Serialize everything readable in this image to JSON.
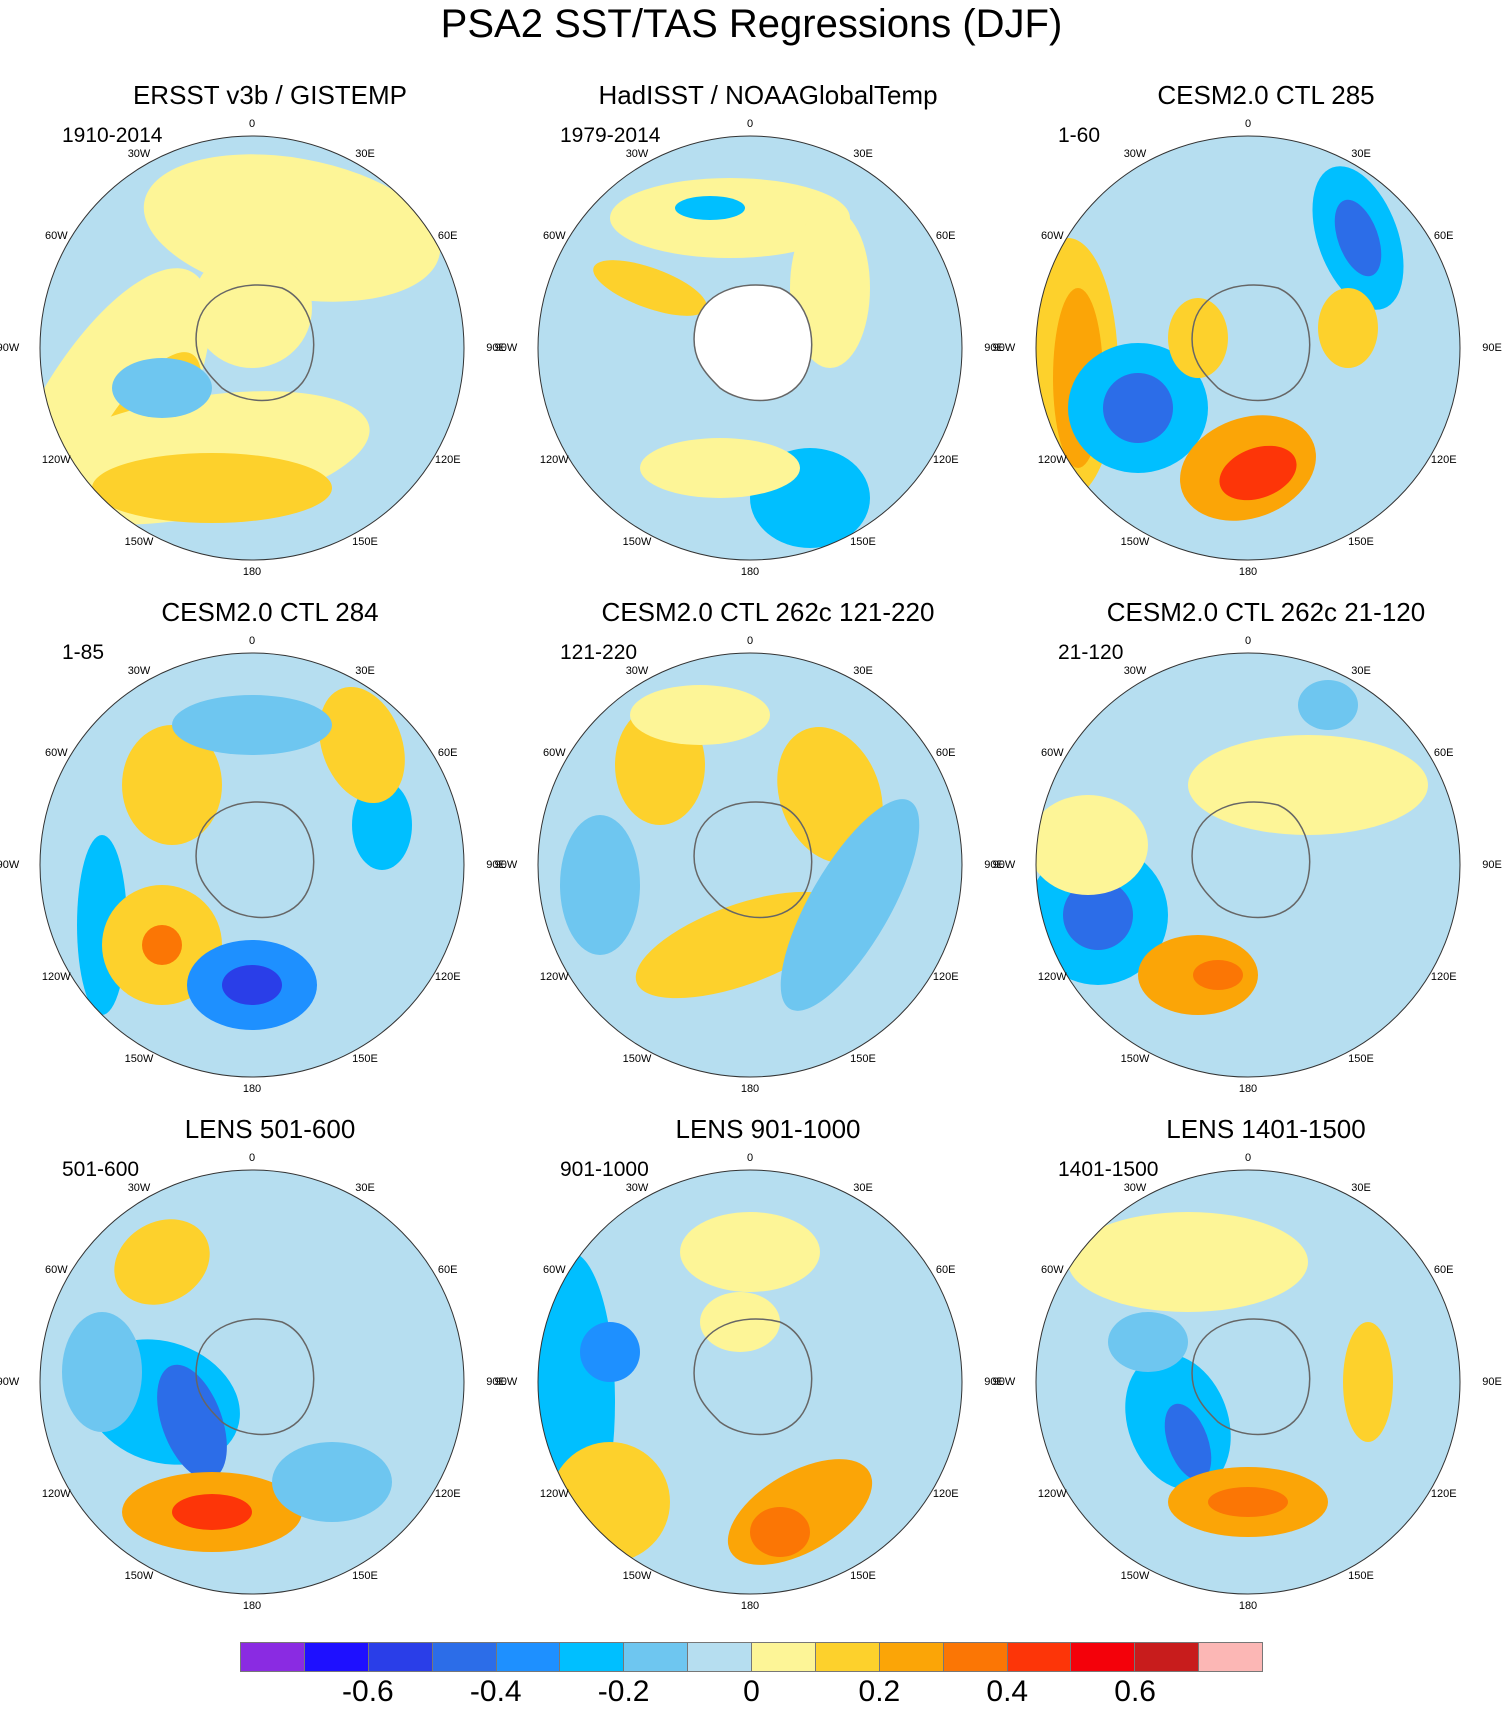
{
  "title": "PSA2 SST/TAS Regressions (DJF)",
  "longitude_labels": [
    "0",
    "30E",
    "60E",
    "90E",
    "120E",
    "150E",
    "180",
    "150W",
    "120W",
    "90W",
    "60W",
    "30W"
  ],
  "panels": [
    {
      "title": "ERSST v3b / GISTEMP",
      "period": "1910-2014"
    },
    {
      "title": "HadISST / NOAAGlobalTemp",
      "period": "1979-2014"
    },
    {
      "title": "CESM2.0 CTL 285",
      "period": "1-60"
    },
    {
      "title": "CESM2.0 CTL 284",
      "period": "1-85"
    },
    {
      "title": "CESM2.0 CTL 262c 121-220",
      "period": "121-220"
    },
    {
      "title": "CESM2.0 CTL 262c 21-120",
      "period": "21-120"
    },
    {
      "title": "LENS 501-600",
      "period": "501-600"
    },
    {
      "title": "LENS 901-1000",
      "period": "901-1000"
    },
    {
      "title": "LENS 1401-1500",
      "period": "1401-1500"
    }
  ],
  "colorbar": {
    "colors": [
      "#8a2be2",
      "#1e10ff",
      "#2a3ee8",
      "#2c6de8",
      "#1e90ff",
      "#00bfff",
      "#6ec6f0",
      "#b6def0",
      "#fdf597",
      "#fdd12c",
      "#fba507",
      "#fb7605",
      "#fd3508",
      "#f4010a",
      "#c81c1c",
      "#fcb7b5"
    ],
    "labels": [
      "-0.6",
      "-0.4",
      "-0.2",
      "0",
      "0.2",
      "0.4",
      "0.6"
    ]
  }
}
